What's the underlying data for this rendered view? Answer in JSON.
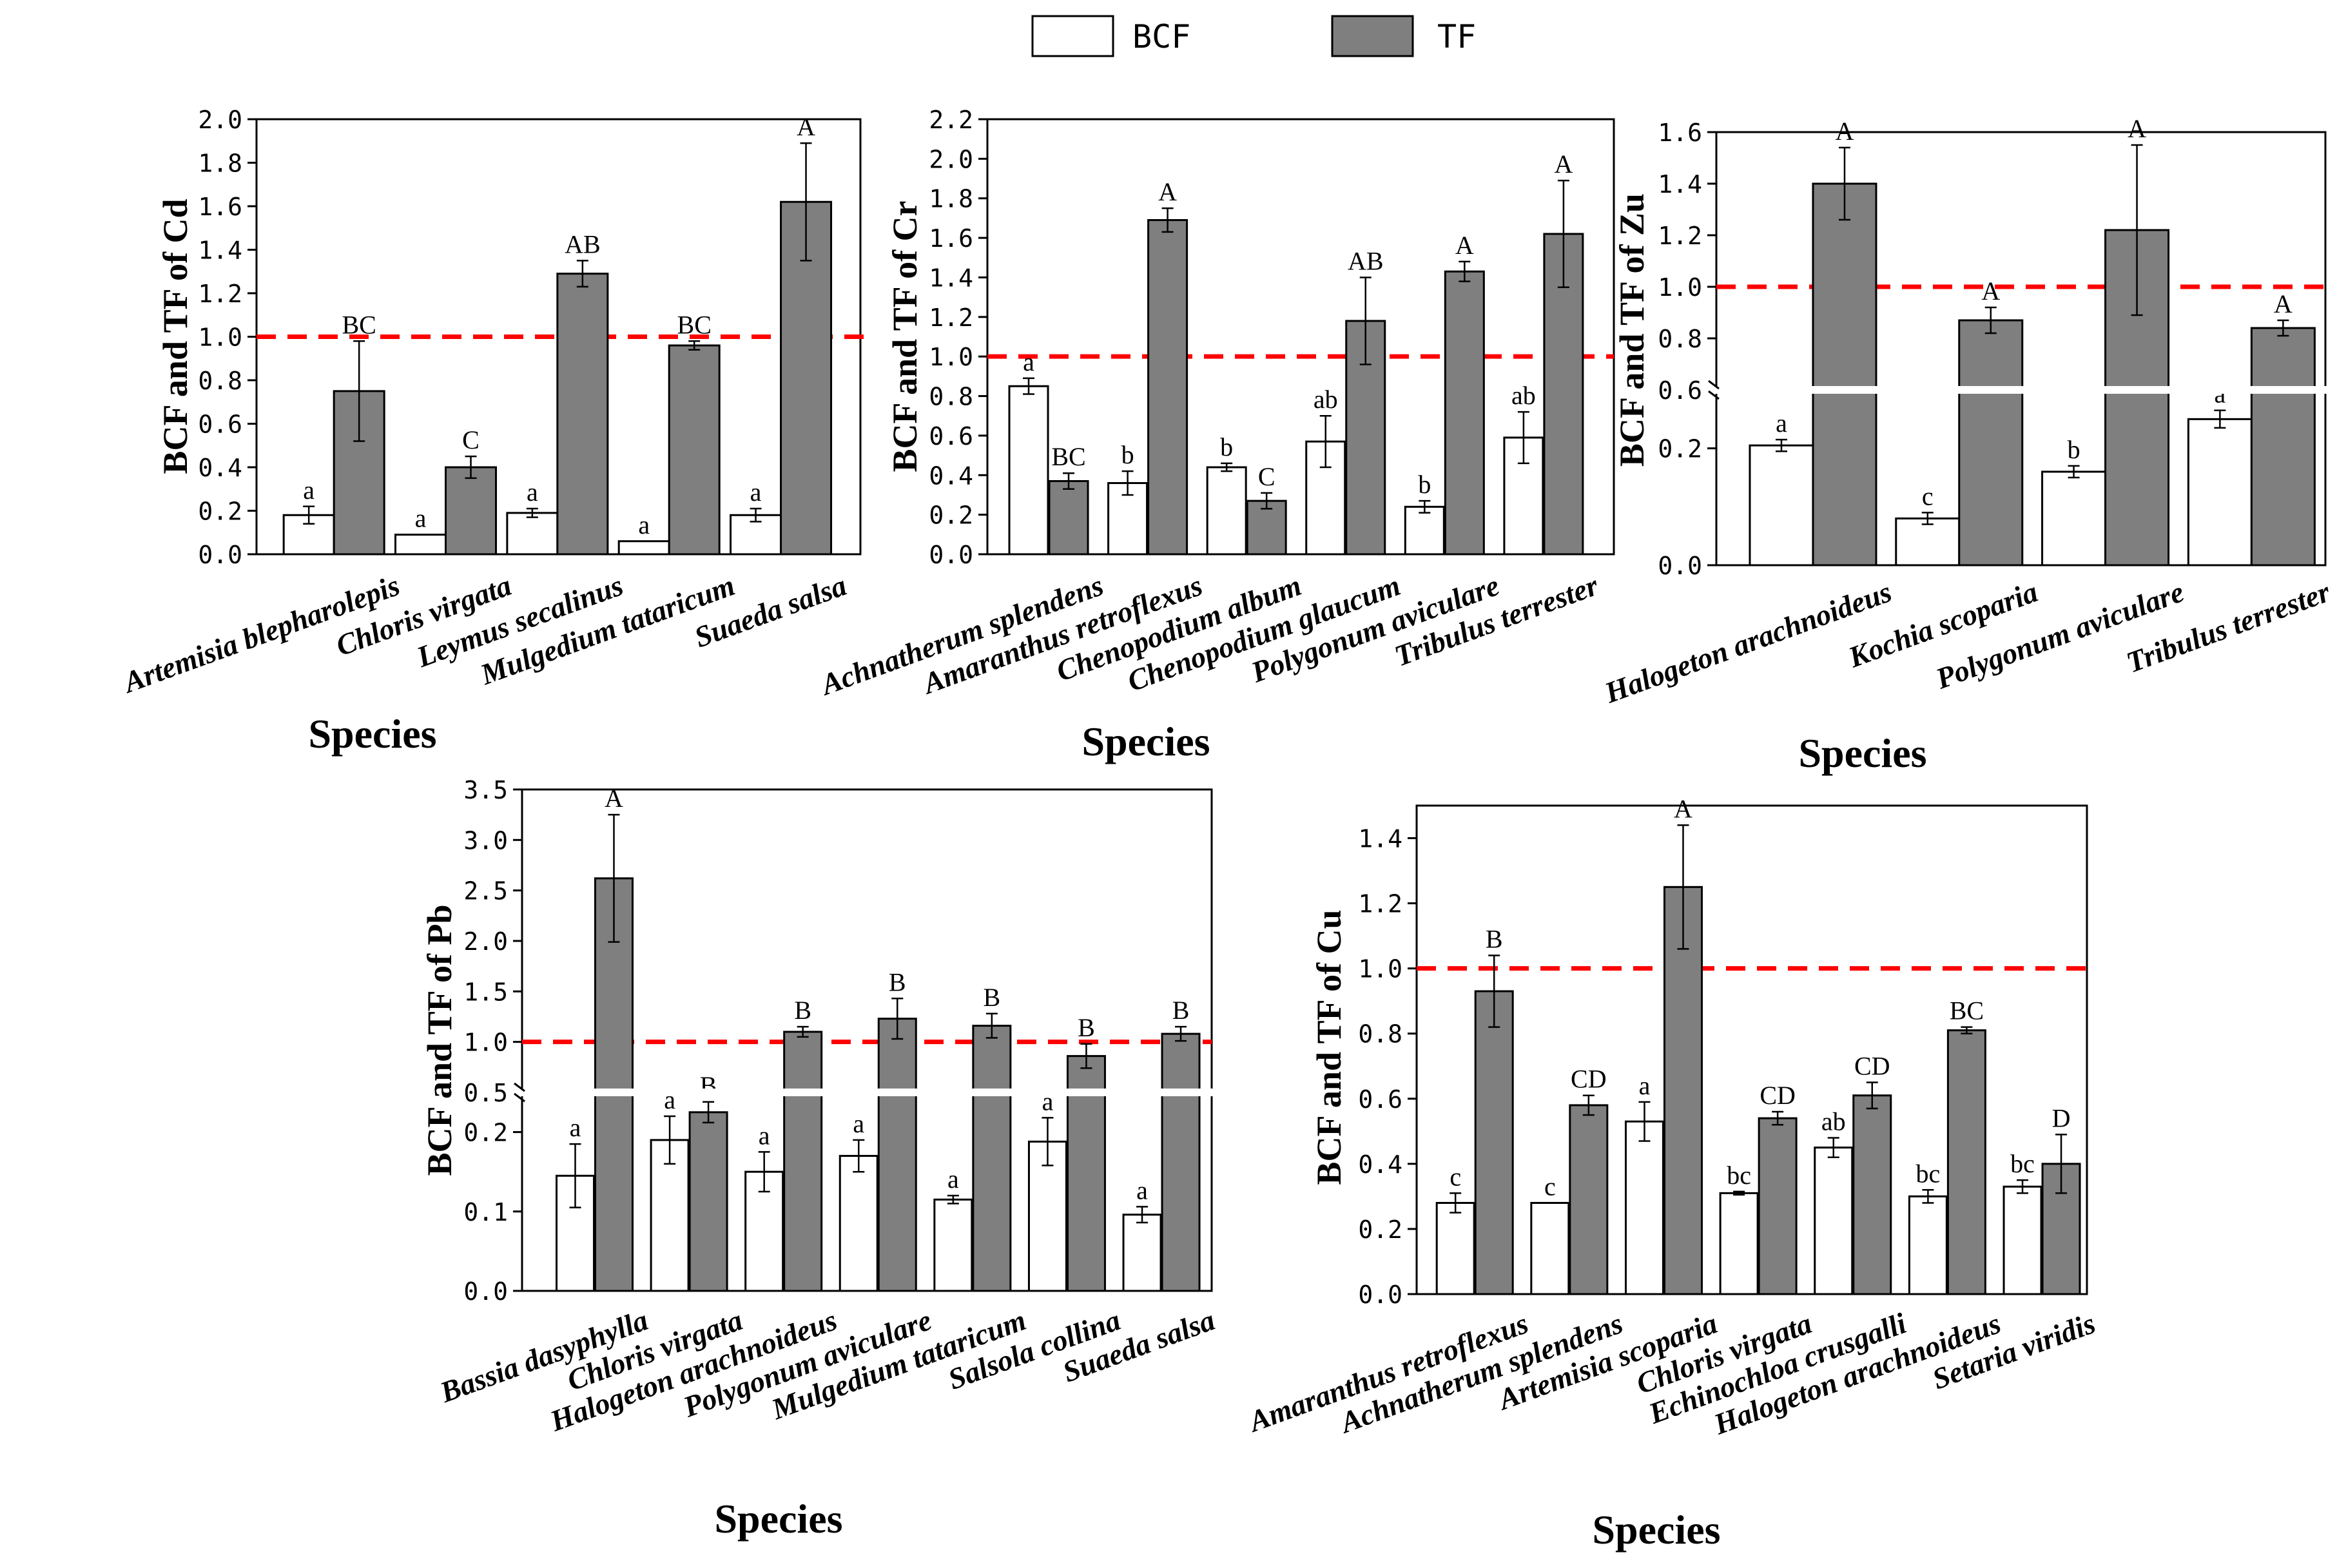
{
  "legend": {
    "items": [
      {
        "label": "BCF",
        "color": "#ffffff"
      },
      {
        "label": "TF",
        "color": "#7f7f7f"
      }
    ]
  },
  "colors": {
    "bcf": "#ffffff",
    "tf": "#7f7f7f",
    "threshold": "#ff0000",
    "axis": "#000000"
  },
  "chart_data": [
    {
      "type": "bar",
      "title": "",
      "xlabel": "Species",
      "ylabel": "BCF and TF of Cd",
      "ylim": [
        0,
        2.0
      ],
      "yticks": [
        "0.0",
        "0.2",
        "0.4",
        "0.6",
        "0.8",
        "1.0",
        "1.2",
        "1.4",
        "1.6",
        "1.8",
        "2.0"
      ],
      "threshold": 1.0,
      "categories": [
        "Artemisia blepharolepis",
        "Chloris virgata",
        "Leymus secalinus",
        "Mulgedium tataricum",
        "Suaeda salsa"
      ],
      "series": [
        {
          "name": "BCF",
          "values": [
            0.18,
            0.09,
            0.19,
            0.06,
            0.18
          ],
          "errors": [
            0.04,
            0.0,
            0.02,
            0.0,
            0.03
          ],
          "letters": [
            "a",
            "a",
            "a",
            "a",
            "a"
          ]
        },
        {
          "name": "TF",
          "values": [
            0.75,
            0.4,
            1.29,
            0.96,
            1.62
          ],
          "errors": [
            0.23,
            0.05,
            0.06,
            0.02,
            0.27
          ],
          "letters": [
            "BC",
            "C",
            "AB",
            "BC",
            "A"
          ]
        }
      ]
    },
    {
      "type": "bar",
      "title": "",
      "xlabel": "Species",
      "ylabel": "BCF and TF of Cr",
      "ylim": [
        0,
        2.2
      ],
      "yticks": [
        "0.0",
        "0.2",
        "0.4",
        "0.6",
        "0.8",
        "1.0",
        "1.2",
        "1.4",
        "1.6",
        "1.8",
        "2.0",
        "2.2"
      ],
      "threshold": 1.0,
      "categories": [
        "Achnatherum splendens",
        "Amaranthus retroflexus",
        "Chenopodium album",
        "Chenopodium glaucum",
        "Polygonum aviculare",
        "Tribulus terrester"
      ],
      "series": [
        {
          "name": "BCF",
          "values": [
            0.85,
            0.36,
            0.44,
            0.57,
            0.24,
            0.59
          ],
          "errors": [
            0.04,
            0.06,
            0.02,
            0.13,
            0.03,
            0.13
          ],
          "letters": [
            "a",
            "b",
            "b",
            "ab",
            "b",
            "ab"
          ]
        },
        {
          "name": "TF",
          "values": [
            0.37,
            1.69,
            0.27,
            1.18,
            1.43,
            1.62
          ],
          "errors": [
            0.04,
            0.06,
            0.04,
            0.22,
            0.05,
            0.27
          ],
          "letters": [
            "BC",
            "A",
            "C",
            "AB",
            "A",
            "A"
          ]
        }
      ]
    },
    {
      "type": "bar",
      "title": "",
      "xlabel": "Species",
      "ylabel": "BCF and TF of Zu",
      "broken_axis": {
        "lower_range": [
          0,
          0.3
        ],
        "upper_range": [
          0.6,
          1.6
        ]
      },
      "yticks_lower": [
        "0.0",
        "0.2"
      ],
      "yticks_upper": [
        "0.6",
        "0.8",
        "1.0",
        "1.2",
        "1.4",
        "1.6"
      ],
      "threshold": 1.0,
      "categories": [
        "Halogeton arachnoideus",
        "Kochia scoparia",
        "Polygonum aviculare",
        "Tribulus terrester"
      ],
      "series": [
        {
          "name": "BCF",
          "values": [
            0.205,
            0.08,
            0.16,
            0.25
          ],
          "errors": [
            0.01,
            0.01,
            0.01,
            0.015
          ],
          "letters": [
            "a",
            "c",
            "b",
            "a"
          ]
        },
        {
          "name": "TF",
          "values": [
            1.4,
            0.87,
            1.22,
            0.84
          ],
          "errors": [
            0.14,
            0.05,
            0.33,
            0.03
          ],
          "letters": [
            "A",
            "A",
            "A",
            "A"
          ]
        }
      ]
    },
    {
      "type": "bar",
      "title": "",
      "xlabel": "Species",
      "ylabel": "BCF and TF of Pb",
      "broken_axis": {
        "lower_range": [
          0,
          0.25
        ],
        "upper_range": [
          0.5,
          3.5
        ]
      },
      "yticks_lower": [
        "0.0",
        "0.1",
        "0.2"
      ],
      "yticks_upper": [
        "0.5",
        "1.0",
        "1.5",
        "2.0",
        "2.5",
        "3.0",
        "3.5"
      ],
      "threshold": 1.0,
      "categories": [
        "Bassia dasyphylla",
        "Chloris virgata",
        "Halogeton arachnoideus",
        "Polygonum aviculare",
        "Mulgedium tataricum",
        "Salsola collina",
        "Suaeda salsa"
      ],
      "series": [
        {
          "name": "BCF",
          "values": [
            0.145,
            0.19,
            0.15,
            0.17,
            0.115,
            0.188,
            0.096
          ],
          "errors": [
            0.04,
            0.03,
            0.025,
            0.02,
            0.005,
            0.03,
            0.01
          ],
          "letters": [
            "a",
            "a",
            "a",
            "a",
            "a",
            "a",
            "a"
          ]
        },
        {
          "name": "TF",
          "values": [
            2.62,
            0.225,
            1.1,
            1.23,
            1.16,
            0.86,
            1.08
          ],
          "errors": [
            0.63,
            0.013,
            0.05,
            0.2,
            0.12,
            0.12,
            0.07
          ],
          "letters": [
            "A",
            "B",
            "B",
            "B",
            "B",
            "B",
            "B"
          ]
        }
      ]
    },
    {
      "type": "bar",
      "title": "",
      "xlabel": "Species",
      "ylabel": "BCF and TF of Cu",
      "ylim": [
        0,
        1.5
      ],
      "yticks": [
        "0.0",
        "0.2",
        "0.4",
        "0.6",
        "0.8",
        "1.0",
        "1.2",
        "1.4"
      ],
      "threshold": 1.0,
      "categories": [
        "Amaranthus retroflexus",
        "Achnatherum splendens",
        "Artemisia scoparia",
        "Chloris virgata",
        "Echinochloa crusgalli",
        "Halogeton arachnoideus",
        "Setaria viridis"
      ],
      "series": [
        {
          "name": "BCF",
          "values": [
            0.28,
            0.28,
            0.53,
            0.31,
            0.45,
            0.3,
            0.33
          ],
          "errors": [
            0.03,
            0.0,
            0.06,
            0.005,
            0.03,
            0.02,
            0.02
          ],
          "letters": [
            "c",
            "c",
            "a",
            "bc",
            "ab",
            "bc",
            "bc"
          ]
        },
        {
          "name": "TF",
          "values": [
            0.93,
            0.58,
            1.25,
            0.54,
            0.61,
            0.81,
            0.4
          ],
          "errors": [
            0.11,
            0.03,
            0.19,
            0.02,
            0.04,
            0.01,
            0.09
          ],
          "letters": [
            "B",
            "CD",
            "A",
            "CD",
            "CD",
            "BC",
            "D"
          ]
        }
      ]
    }
  ]
}
